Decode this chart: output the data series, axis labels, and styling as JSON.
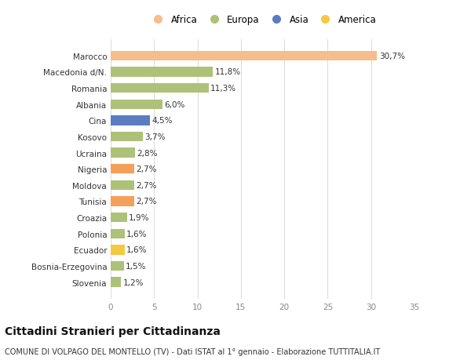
{
  "categories": [
    "Slovenia",
    "Bosnia-Erzegovina",
    "Ecuador",
    "Polonia",
    "Croazia",
    "Tunisia",
    "Moldova",
    "Nigeria",
    "Ucraina",
    "Kosovo",
    "Cina",
    "Albania",
    "Romania",
    "Macedonia d/N.",
    "Marocco"
  ],
  "values": [
    1.2,
    1.5,
    1.6,
    1.6,
    1.9,
    2.7,
    2.7,
    2.7,
    2.8,
    3.7,
    4.5,
    6.0,
    11.3,
    11.8,
    30.7
  ],
  "labels": [
    "1,2%",
    "1,5%",
    "1,6%",
    "1,6%",
    "1,9%",
    "2,7%",
    "2,7%",
    "2,7%",
    "2,8%",
    "3,7%",
    "4,5%",
    "6,0%",
    "11,3%",
    "11,8%",
    "30,7%"
  ],
  "colors": [
    "#adc178",
    "#adc178",
    "#f5c842",
    "#adc178",
    "#adc178",
    "#f5a05a",
    "#adc178",
    "#f5a05a",
    "#adc178",
    "#adc178",
    "#5b7dbf",
    "#adc178",
    "#adc178",
    "#adc178",
    "#f5be8a"
  ],
  "legend_labels": [
    "Africa",
    "Europa",
    "Asia",
    "America"
  ],
  "legend_colors": [
    "#f5be8a",
    "#adc178",
    "#5b7dbf",
    "#f5c842"
  ],
  "title": "Cittadini Stranieri per Cittadinanza",
  "subtitle": "COMUNE DI VOLPAGO DEL MONTELLO (TV) - Dati ISTAT al 1° gennaio - Elaborazione TUTTITALIA.IT",
  "xlim": [
    0,
    35
  ],
  "xticks": [
    0,
    5,
    10,
    15,
    20,
    25,
    30,
    35
  ],
  "background_color": "#ffffff",
  "bar_height": 0.6,
  "label_fontsize": 7.5,
  "tick_fontsize": 7.5,
  "title_fontsize": 10,
  "subtitle_fontsize": 7
}
